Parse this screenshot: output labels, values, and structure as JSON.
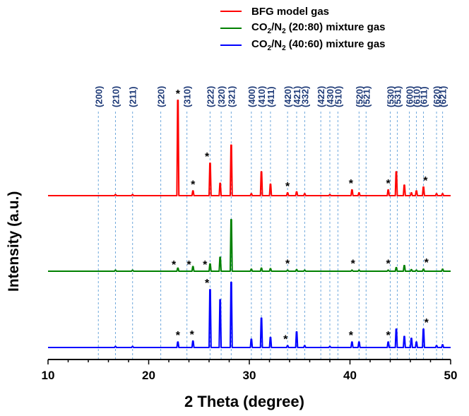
{
  "chart_data": {
    "type": "line",
    "title": "",
    "xlabel": "2 Theta (degree)",
    "ylabel": "Intensity (a.u.)",
    "xlim": [
      10,
      50
    ],
    "x_ticks": [
      "10",
      "20",
      "30",
      "40",
      "50"
    ],
    "grid": false,
    "legend_position": "top-center",
    "reflection_markers": [
      {
        "hkl": "(200)",
        "x": 15.0
      },
      {
        "hkl": "(210)",
        "x": 16.7
      },
      {
        "hkl": "(211)",
        "x": 18.4
      },
      {
        "hkl": "(220)",
        "x": 21.2
      },
      {
        "hkl": "(310)",
        "x": 23.8
      },
      {
        "hkl": "(222)",
        "x": 26.1
      },
      {
        "hkl": "(320)",
        "x": 27.2
      },
      {
        "hkl": "(321)",
        "x": 28.2
      },
      {
        "hkl": "(400)",
        "x": 30.2
      },
      {
        "hkl": "(410)",
        "x": 31.2
      },
      {
        "hkl": "(411)",
        "x": 32.1
      },
      {
        "hkl": "(420)",
        "x": 33.8
      },
      {
        "hkl": "(421)",
        "x": 34.7
      },
      {
        "hkl": "(332)",
        "x": 35.5
      },
      {
        "hkl": "(422)",
        "x": 37.1
      },
      {
        "hkl": "(430)",
        "x": 38.0
      },
      {
        "hkl": "(510)",
        "x": 38.8
      },
      {
        "hkl": "(520)",
        "x": 40.9
      },
      {
        "hkl": "(521)",
        "x": 41.6
      },
      {
        "hkl": "(530)",
        "x": 44.0
      },
      {
        "hkl": "(531)",
        "x": 44.7
      },
      {
        "hkl": "(600)",
        "x": 45.9
      },
      {
        "hkl": "(610)",
        "x": 46.6
      },
      {
        "hkl": "(611)",
        "x": 47.3
      },
      {
        "hkl": "(620)",
        "x": 48.6
      },
      {
        "hkl": "(621)",
        "x": 49.2
      }
    ],
    "series": [
      {
        "name": "BFG model gas",
        "color": "#ff0000",
        "peaks": [
          [
            16.7,
            0.01
          ],
          [
            18.4,
            0.01
          ],
          [
            22.9,
            1.0
          ],
          [
            24.4,
            0.05
          ],
          [
            26.1,
            0.34
          ],
          [
            27.1,
            0.13
          ],
          [
            28.2,
            0.53
          ],
          [
            30.2,
            0.02
          ],
          [
            31.2,
            0.25
          ],
          [
            32.1,
            0.12
          ],
          [
            33.8,
            0.03
          ],
          [
            34.7,
            0.04
          ],
          [
            35.5,
            0.02
          ],
          [
            38.0,
            0.01
          ],
          [
            40.2,
            0.06
          ],
          [
            40.9,
            0.03
          ],
          [
            43.8,
            0.06
          ],
          [
            44.6,
            0.25
          ],
          [
            45.4,
            0.11
          ],
          [
            46.1,
            0.03
          ],
          [
            46.6,
            0.05
          ],
          [
            47.3,
            0.09
          ],
          [
            48.6,
            0.02
          ],
          [
            49.2,
            0.02
          ]
        ],
        "asterisks": [
          22.9,
          24.4,
          25.8,
          33.8,
          40.1,
          43.8,
          47.5
        ]
      },
      {
        "name": "CO2/N2 (20:80) mixture gas",
        "label_parts": [
          "CO",
          "2",
          "/N",
          "2",
          " (20:80) mixture gas"
        ],
        "color": "#008000",
        "peaks": [
          [
            16.7,
            0.01
          ],
          [
            18.4,
            0.01
          ],
          [
            22.9,
            0.06
          ],
          [
            24.4,
            0.09
          ],
          [
            26.1,
            0.14
          ],
          [
            27.1,
            0.27
          ],
          [
            28.2,
            1.0
          ],
          [
            30.2,
            0.04
          ],
          [
            31.2,
            0.06
          ],
          [
            32.1,
            0.05
          ],
          [
            33.8,
            0.02
          ],
          [
            34.7,
            0.03
          ],
          [
            35.5,
            0.02
          ],
          [
            40.2,
            0.02
          ],
          [
            40.9,
            0.02
          ],
          [
            43.8,
            0.02
          ],
          [
            44.6,
            0.07
          ],
          [
            45.4,
            0.11
          ],
          [
            46.1,
            0.03
          ],
          [
            46.6,
            0.02
          ],
          [
            47.3,
            0.04
          ],
          [
            49.2,
            0.04
          ]
        ],
        "asterisks": [
          22.5,
          24.0,
          25.6,
          33.8,
          40.3,
          43.8,
          47.6
        ]
      },
      {
        "name": "CO2/N2 (40:60) mixture gas",
        "label_parts": [
          "CO",
          "2",
          "/N",
          "2",
          " (40:60) mixture gas"
        ],
        "color": "#0000ff",
        "peaks": [
          [
            16.7,
            0.01
          ],
          [
            18.4,
            0.01
          ],
          [
            22.9,
            0.06
          ],
          [
            24.4,
            0.07
          ],
          [
            26.1,
            0.63
          ],
          [
            27.1,
            0.52
          ],
          [
            28.2,
            0.71
          ],
          [
            30.2,
            0.09
          ],
          [
            31.2,
            0.32
          ],
          [
            32.1,
            0.11
          ],
          [
            33.8,
            0.02
          ],
          [
            34.7,
            0.17
          ],
          [
            35.5,
            0.02
          ],
          [
            38.0,
            0.01
          ],
          [
            40.2,
            0.06
          ],
          [
            40.9,
            0.06
          ],
          [
            43.8,
            0.06
          ],
          [
            44.6,
            0.2
          ],
          [
            45.4,
            0.12
          ],
          [
            46.1,
            0.1
          ],
          [
            46.6,
            0.06
          ],
          [
            47.3,
            0.2
          ],
          [
            48.6,
            0.02
          ],
          [
            49.2,
            0.03
          ]
        ],
        "asterisks": [
          22.9,
          24.3,
          25.8,
          33.6,
          40.1,
          43.8,
          47.6
        ]
      }
    ]
  }
}
